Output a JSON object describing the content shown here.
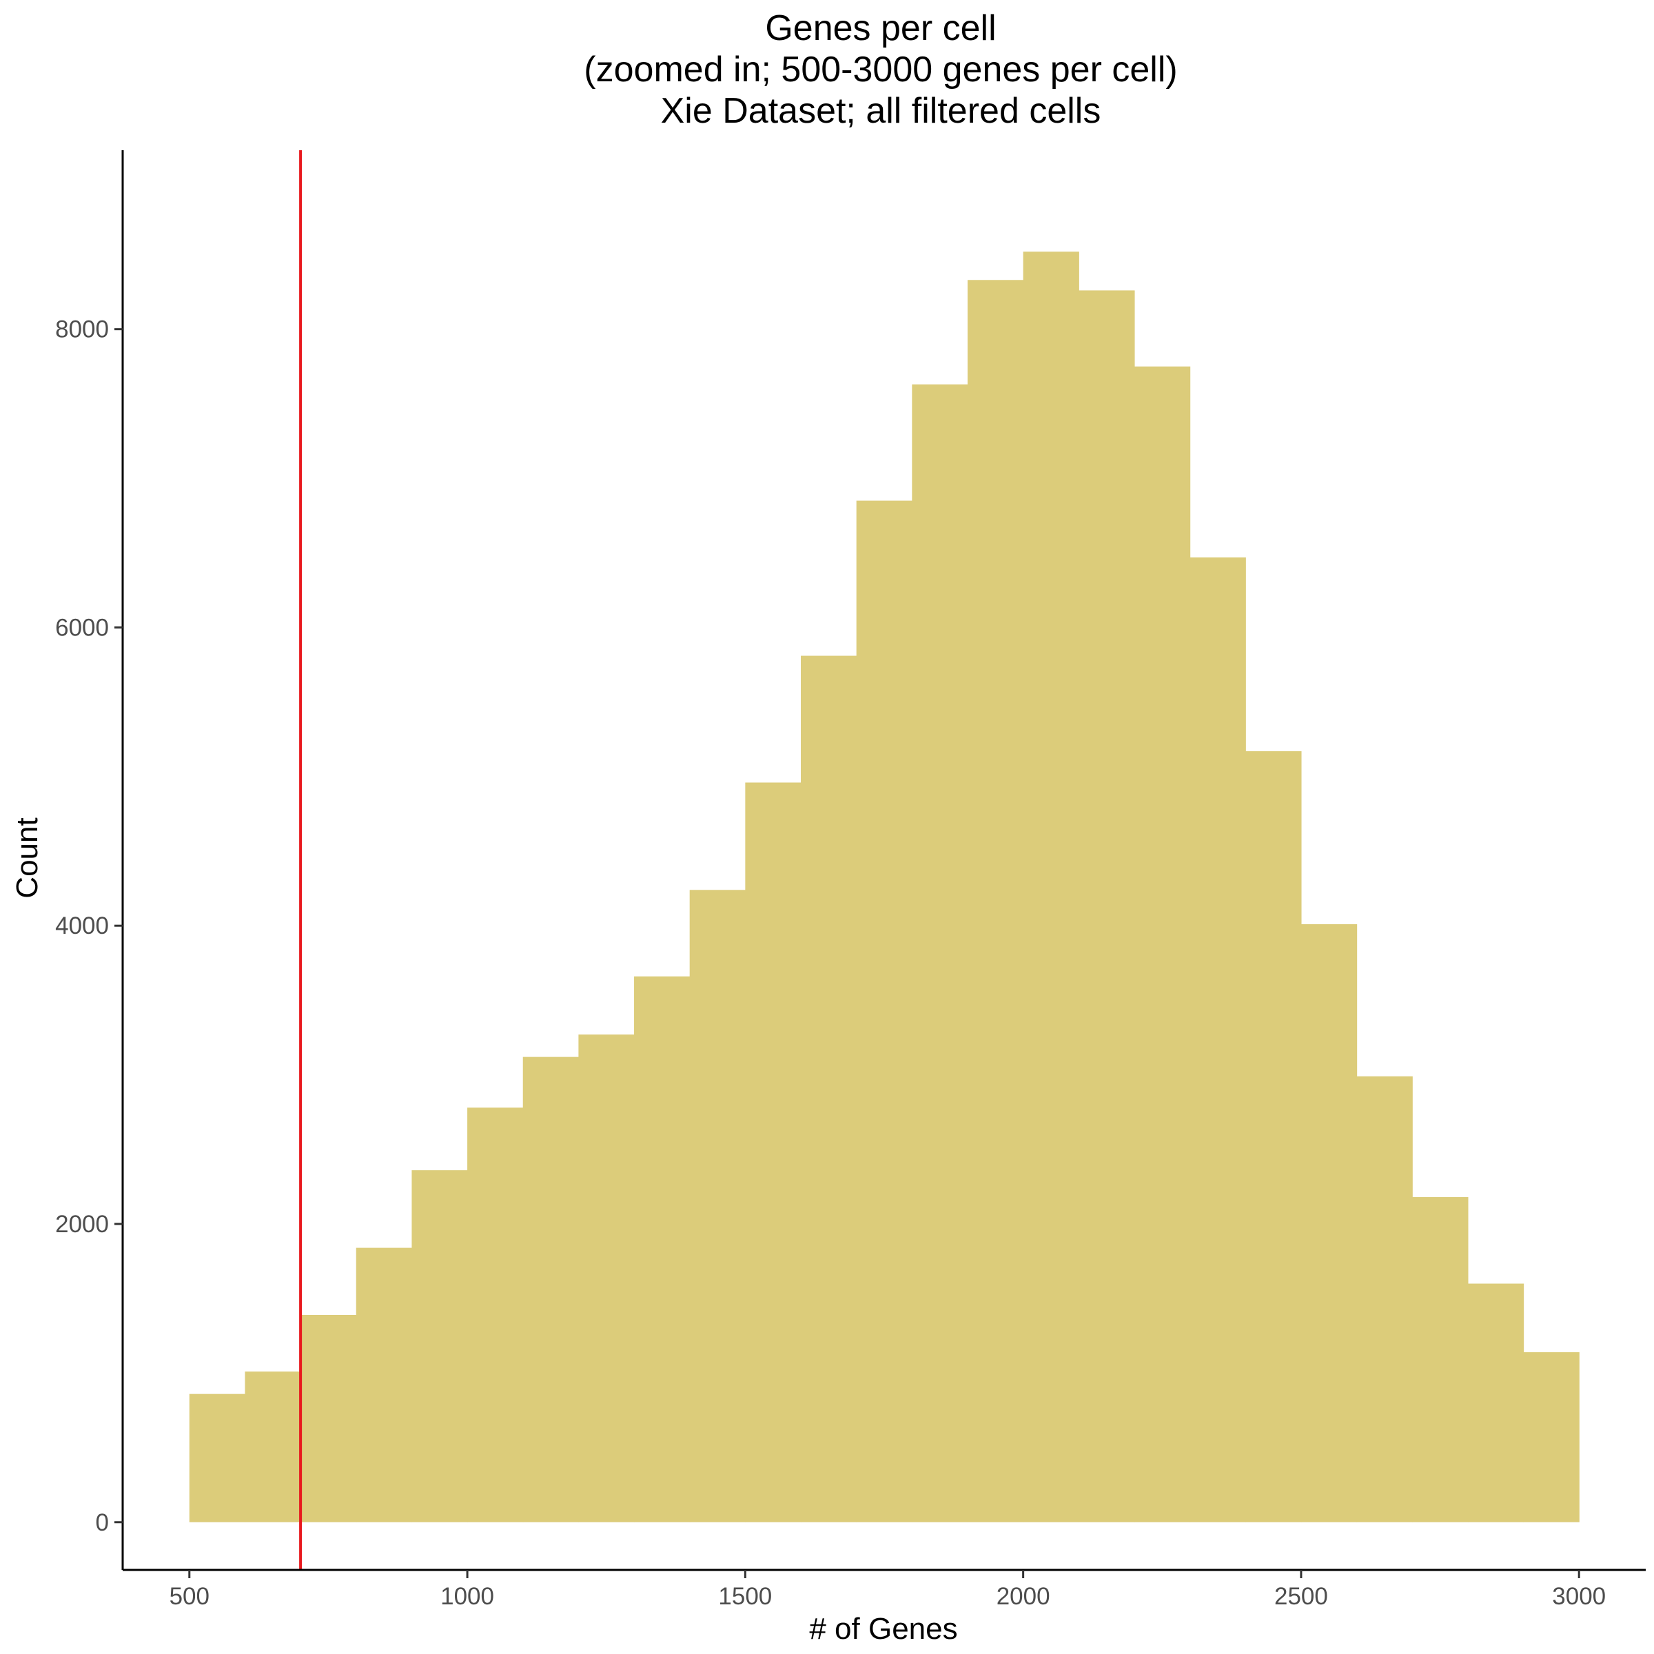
{
  "chart_data": {
    "type": "bar",
    "title_lines": [
      "Genes per cell",
      "(zoomed in; 500-3000 genes per cell)",
      "Xie Dataset; all filtered cells"
    ],
    "xlabel": "# of Genes",
    "ylabel": "Count",
    "bin_width": 100,
    "x": [
      500,
      600,
      700,
      800,
      900,
      1000,
      1100,
      1200,
      1300,
      1400,
      1500,
      1600,
      1700,
      1800,
      1900,
      2000,
      2100,
      2200,
      2300,
      2400,
      2500,
      2600,
      2700,
      2800,
      2900
    ],
    "values": [
      860,
      1010,
      1390,
      1840,
      2360,
      2780,
      3120,
      3270,
      3660,
      4240,
      4960,
      5810,
      6850,
      7630,
      8330,
      8520,
      8260,
      7750,
      6470,
      5170,
      4010,
      2990,
      2180,
      1600,
      1140
    ],
    "xlim": [
      380,
      3120
    ],
    "ylim": [
      -320,
      9200
    ],
    "x_ticks": [
      500,
      1000,
      1500,
      2000,
      2500,
      3000
    ],
    "y_ticks": [
      0,
      2000,
      4000,
      6000,
      8000
    ],
    "vline_x": 700,
    "bar_color": "#DCCC7A",
    "vline_color": "#E8191E",
    "grid": false,
    "legend": "none"
  }
}
